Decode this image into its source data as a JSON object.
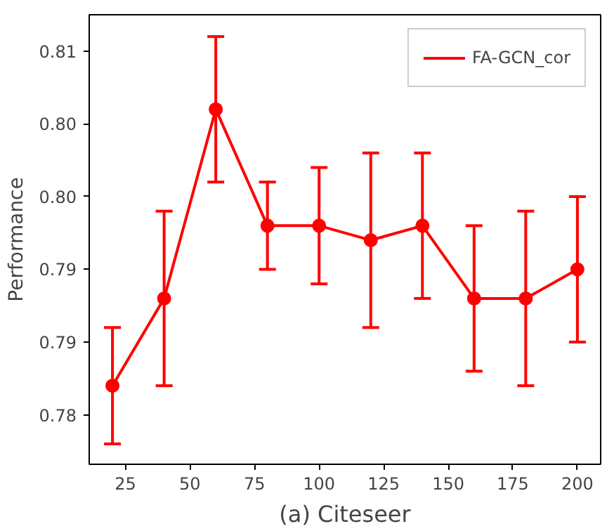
{
  "chart_data": {
    "type": "line",
    "xlabel": "(a) Citeseer",
    "ylabel": "Performance",
    "x": [
      20,
      40,
      60,
      80,
      100,
      120,
      140,
      160,
      180,
      200
    ],
    "series": [
      {
        "name": "FA-GCN_cor",
        "color": "#ff0000",
        "values": [
          0.782,
          0.788,
          0.801,
          0.793,
          0.793,
          0.792,
          0.793,
          0.788,
          0.788,
          0.79
        ],
        "errors": [
          0.004,
          0.006,
          0.005,
          0.003,
          0.004,
          0.006,
          0.005,
          0.005,
          0.006,
          0.005
        ]
      }
    ],
    "xlim": [
      11,
      209
    ],
    "ylim": [
      0.7766,
      0.8075
    ],
    "xticks": [
      25,
      50,
      75,
      100,
      125,
      150,
      175,
      200
    ],
    "yticks": [
      {
        "value": 0.78,
        "label": "0.78"
      },
      {
        "value": 0.785,
        "label": "0.79"
      },
      {
        "value": 0.79,
        "label": "0.79"
      },
      {
        "value": 0.795,
        "label": "0.80"
      },
      {
        "value": 0.8,
        "label": "0.80"
      },
      {
        "value": 0.805,
        "label": "0.81"
      }
    ],
    "marker": "circle",
    "line_style": "solid",
    "legend": "top right",
    "grid": false
  }
}
